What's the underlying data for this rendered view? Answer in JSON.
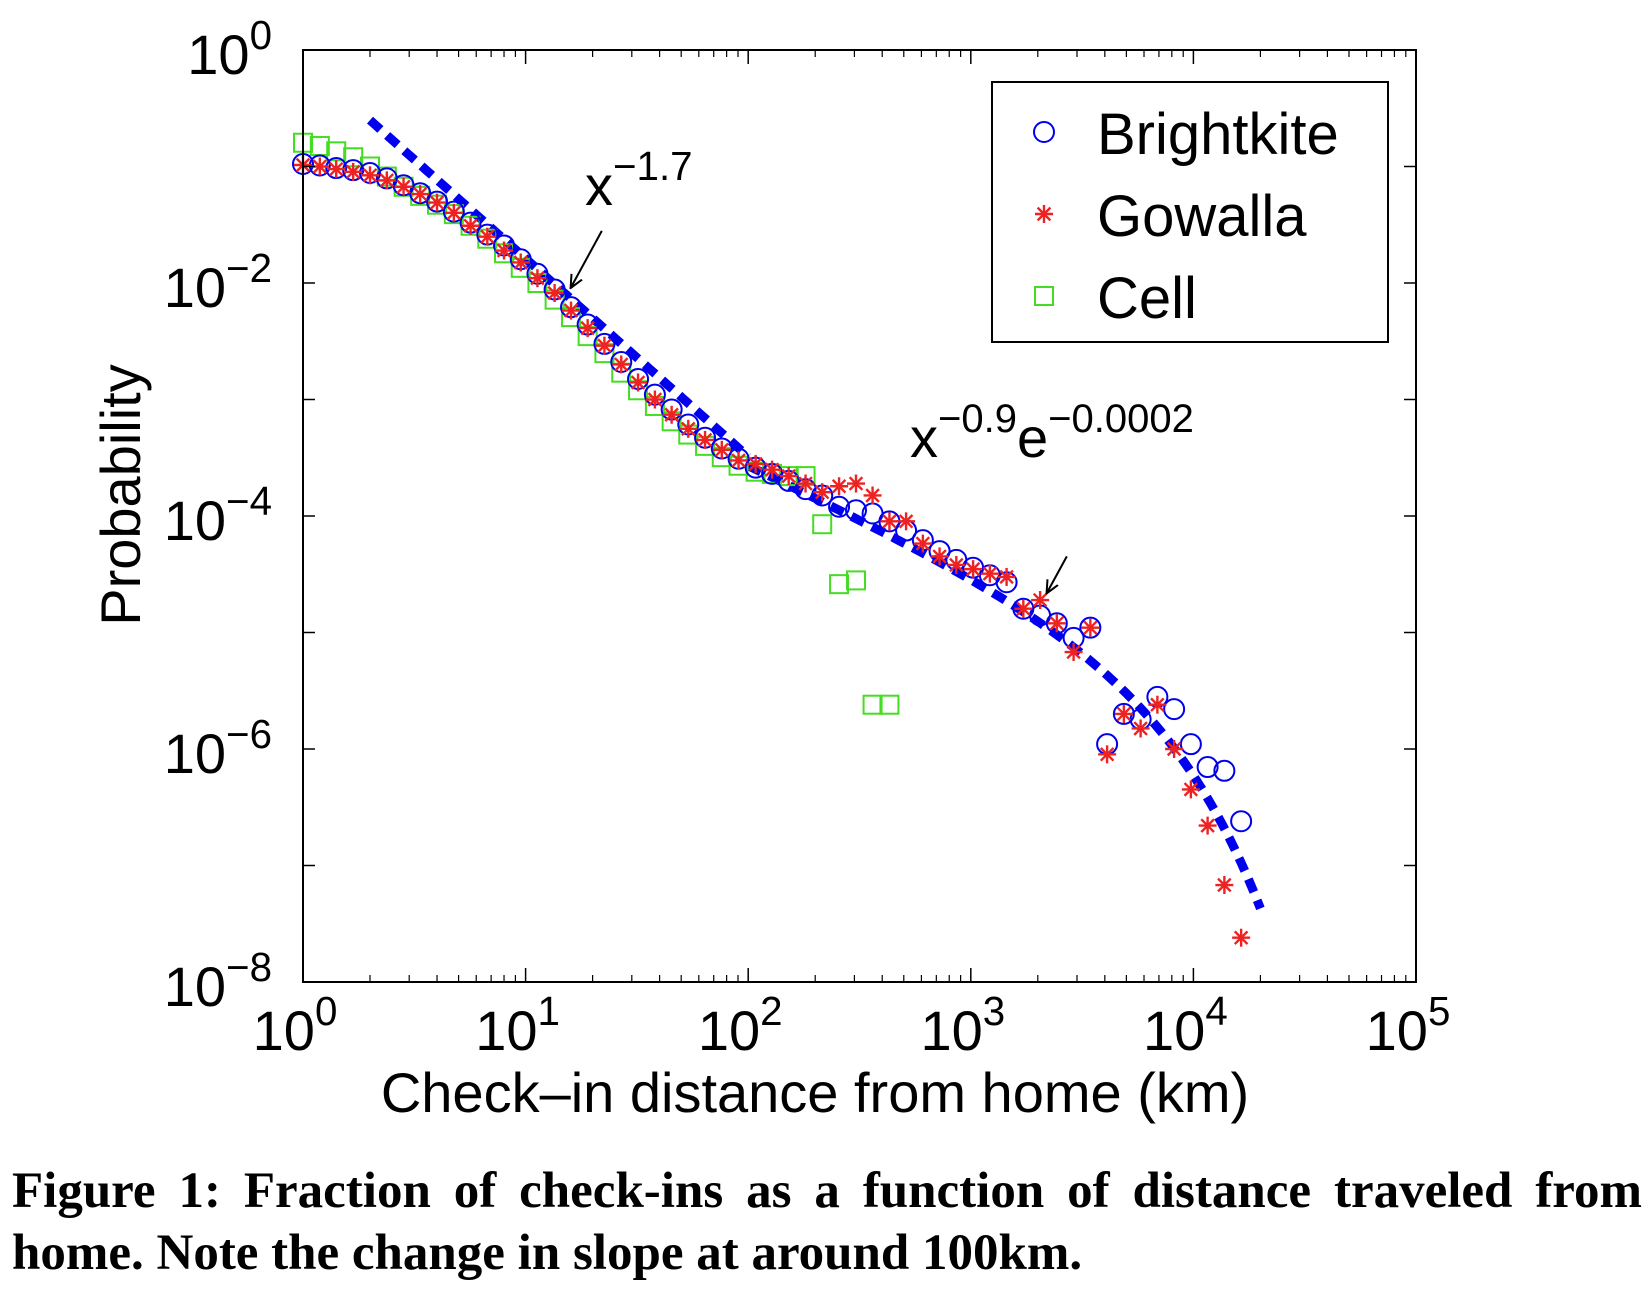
{
  "chart_data": {
    "type": "scatter",
    "xscale": "log",
    "yscale": "log",
    "xlabel": "Check–in distance from home (km)",
    "ylabel": "Probability",
    "xlim": [
      1,
      100000
    ],
    "ylim": [
      1e-08,
      1
    ],
    "x_ticks": [
      {
        "base": "10",
        "exp": "0"
      },
      {
        "base": "10",
        "exp": "1"
      },
      {
        "base": "10",
        "exp": "2"
      },
      {
        "base": "10",
        "exp": "3"
      },
      {
        "base": "10",
        "exp": "4"
      },
      {
        "base": "10",
        "exp": "5"
      }
    ],
    "y_ticks": [
      {
        "base": "10",
        "exp": "0"
      },
      {
        "base": "10",
        "exp": "−2"
      },
      {
        "base": "10",
        "exp": "−4"
      },
      {
        "base": "10",
        "exp": "−6"
      },
      {
        "base": "10",
        "exp": "−8"
      }
    ],
    "legend": {
      "position": "top-right",
      "entries": [
        {
          "label": "Brightkite",
          "marker": "circle",
          "color": "#0000ee"
        },
        {
          "label": "Gowalla",
          "marker": "asterisk",
          "color": "#ee2222"
        },
        {
          "label": "Cell",
          "marker": "square",
          "color": "#44dd22"
        }
      ]
    },
    "series": [
      {
        "name": "Brightkite",
        "marker": "circle",
        "color": "#0000ee",
        "x": [
          1.0,
          1.19,
          1.41,
          1.68,
          2.0,
          2.38,
          2.83,
          3.36,
          4.0,
          4.76,
          5.66,
          6.73,
          8.0,
          9.51,
          11.3,
          13.5,
          16.0,
          19.0,
          22.6,
          26.9,
          32.0,
          38.1,
          45.3,
          53.8,
          64.0,
          76.1,
          90.5,
          108,
          128,
          152,
          181,
          215,
          256,
          305,
          362,
          431,
          512,
          609,
          724,
          861,
          1024,
          1218,
          1448,
          1722,
          2048,
          2435,
          2896,
          3444,
          4096,
          4871,
          5793,
          6889,
          8192,
          9742,
          11585,
          13777,
          16384
        ],
        "y": [
          0.105,
          0.102,
          0.097,
          0.093,
          0.088,
          0.079,
          0.069,
          0.059,
          0.05,
          0.041,
          0.033,
          0.026,
          0.021,
          0.016,
          0.012,
          0.0088,
          0.0062,
          0.0044,
          0.003,
          0.0021,
          0.0015,
          0.0011,
          0.00082,
          0.00061,
          0.00047,
          0.00038,
          0.00031,
          0.00026,
          0.00023,
          0.0002,
          0.00017,
          0.00015,
          0.00012,
          0.000112,
          0.000105,
          9e-05,
          7.5e-05,
          6.2e-05,
          5e-05,
          4.2e-05,
          3.6e-05,
          3.1e-05,
          2.7e-05,
          1.6e-05,
          1.4e-05,
          1.2e-05,
          9e-06,
          1.1e-05,
          1.1e-06,
          2e-06,
          1.8e-06,
          2.8e-06,
          2.2e-06,
          1.1e-06,
          7e-07,
          6.5e-07,
          2.4e-07
        ]
      },
      {
        "name": "Gowalla",
        "marker": "asterisk",
        "color": "#ee2222",
        "x": [
          1.0,
          1.19,
          1.41,
          1.68,
          2.0,
          2.38,
          2.83,
          3.36,
          4.0,
          4.76,
          5.66,
          6.73,
          8.0,
          9.51,
          11.3,
          13.5,
          16.0,
          19.0,
          22.6,
          26.9,
          32.0,
          38.1,
          45.3,
          53.8,
          64.0,
          76.1,
          90.5,
          108,
          128,
          152,
          181,
          215,
          256,
          305,
          362,
          431,
          512,
          609,
          724,
          861,
          1024,
          1218,
          1448,
          1722,
          2048,
          2435,
          2896,
          3444,
          4096,
          4871,
          5793,
          6889,
          8192,
          9742,
          11585,
          13777,
          16384
        ],
        "y": [
          0.103,
          0.1,
          0.095,
          0.09,
          0.084,
          0.076,
          0.067,
          0.058,
          0.049,
          0.04,
          0.031,
          0.025,
          0.019,
          0.015,
          0.011,
          0.0082,
          0.0058,
          0.0041,
          0.0029,
          0.002,
          0.0014,
          0.001,
          0.00074,
          0.00056,
          0.00045,
          0.00037,
          0.0003,
          0.00028,
          0.00025,
          0.00022,
          0.00019,
          0.00016,
          0.00018,
          0.00019,
          0.00015,
          9e-05,
          9e-05,
          5.8e-05,
          4.5e-05,
          3.8e-05,
          3.5e-05,
          3.2e-05,
          3e-05,
          1.6e-05,
          1.9e-05,
          1.2e-05,
          6.8e-06,
          1.1e-05,
          9e-07,
          2e-06,
          1.5e-06,
          2.4e-06,
          1e-06,
          4.5e-07,
          2.2e-07,
          6.8e-08,
          2.4e-08
        ]
      },
      {
        "name": "Cell",
        "marker": "square",
        "color": "#44dd22",
        "x": [
          1.0,
          1.19,
          1.41,
          1.68,
          2.0,
          2.38,
          2.83,
          3.36,
          4.0,
          4.76,
          5.66,
          6.73,
          8.0,
          9.51,
          11.3,
          13.5,
          16.0,
          19.0,
          22.6,
          26.9,
          32.0,
          38.1,
          45.3,
          53.8,
          64.0,
          76.1,
          90.5,
          108,
          128,
          152,
          181,
          215,
          256,
          305,
          362,
          431
        ],
        "y": [
          0.16,
          0.15,
          0.135,
          0.12,
          0.1,
          0.082,
          0.067,
          0.056,
          0.047,
          0.039,
          0.031,
          0.024,
          0.018,
          0.0135,
          0.01,
          0.0072,
          0.0051,
          0.0035,
          0.0025,
          0.0017,
          0.0012,
          0.00088,
          0.00065,
          0.0005,
          0.0004,
          0.00032,
          0.00027,
          0.00024,
          0.00023,
          0.00022,
          0.00022,
          8.5e-05,
          2.6e-05,
          2.8e-05,
          2.4e-06,
          2.4e-06
        ]
      }
    ],
    "fits": [
      {
        "label_base": "x",
        "label_exp": "−1.7",
        "exponent": -1.7,
        "xrange": [
          2,
          100
        ],
        "anchor": [
          2,
          0.25
        ]
      },
      {
        "label_base": "x",
        "label_exp": "−0.9",
        "label_base2": "e",
        "label_exp2": "−0.0002",
        "exponent": -0.9,
        "decay": 0.0002,
        "xrange": [
          100,
          20000
        ],
        "anchor": [
          100,
          0.00027
        ]
      }
    ],
    "annotations": [
      {
        "from": [
          22,
          0.028
        ],
        "to": [
          16,
          0.0092
        ]
      },
      {
        "from": [
          2700,
          4.5e-05
        ],
        "to": [
          2200,
          2.2e-05
        ]
      }
    ]
  },
  "caption": "Figure 1: Fraction of check-ins as a function of distance traveled from home. Note the change in slope at around 100km."
}
